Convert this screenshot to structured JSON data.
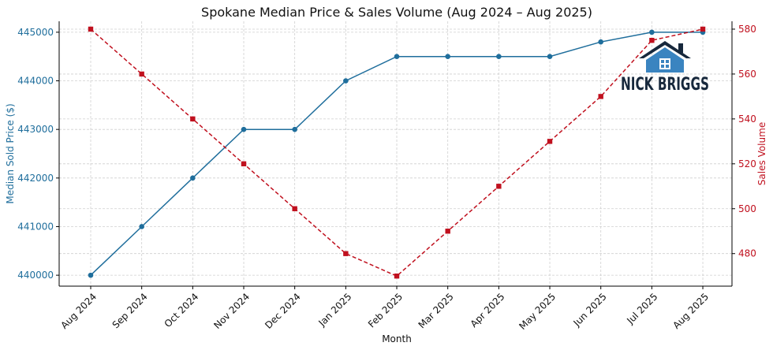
{
  "chart_data": {
    "type": "line",
    "title": "Spokane Median Price & Sales Volume (Aug 2024 – Aug 2025)",
    "xlabel": "Month",
    "categories": [
      "Aug 2024",
      "Sep 2024",
      "Oct 2024",
      "Nov 2024",
      "Dec 2024",
      "Jan 2025",
      "Feb 2025",
      "Mar 2025",
      "Apr 2025",
      "May 2025",
      "Jun 2025",
      "Jul 2025",
      "Aug 2025"
    ],
    "grid": true,
    "y_left": {
      "label": "Median Sold Price ($)",
      "ylim": [
        439775,
        445225
      ],
      "ticks": [
        "440000",
        "441000",
        "442000",
        "443000",
        "444000",
        "445000"
      ],
      "color": "#1f6e9c"
    },
    "y_right": {
      "label": "Sales Volume",
      "ylim": [
        465.5,
        583.5
      ],
      "ticks": [
        "480",
        "500",
        "520",
        "540",
        "560",
        "580"
      ],
      "color": "#c0101e"
    },
    "series": [
      {
        "axis": "left",
        "color": "#1f6e9c",
        "line_style": "solid",
        "marker": "circle",
        "values": [
          440000,
          441000,
          442000,
          443000,
          443000,
          444000,
          444500,
          444500,
          444500,
          444500,
          444800,
          445000,
          445000
        ]
      },
      {
        "axis": "right",
        "color": "#c0101e",
        "line_style": "dashed",
        "marker": "square",
        "values": [
          580,
          560,
          540,
          520,
          500,
          480,
          470,
          490,
          510,
          530,
          550,
          575,
          580
        ]
      }
    ]
  },
  "logo": {
    "text": "NICK BRIGGS",
    "color": "#17283c",
    "accent": "#3a84c0"
  }
}
